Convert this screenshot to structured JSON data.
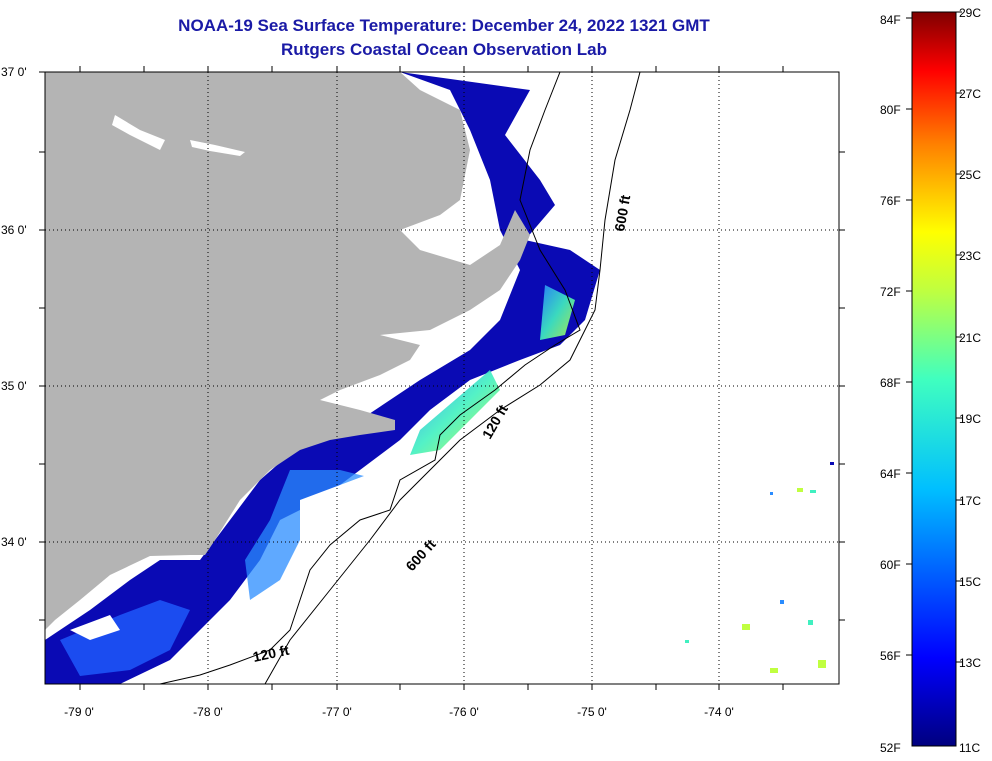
{
  "header": {
    "title": "NOAA-19 Sea Surface Temperature:  December 24, 2022 1321 GMT",
    "subtitle": "Rutgers Coastal Ocean Observation Lab"
  },
  "map": {
    "lon_ticks": [
      "-79 0'",
      "-78 0'",
      "-77 0'",
      "-76 0'",
      "-75 0'",
      "-74 0'"
    ],
    "lat_ticks": [
      "37 0'",
      "36 0'",
      "35 0'",
      "34 0'"
    ],
    "contours": [
      {
        "label": "600 ft"
      },
      {
        "label": "120 ft"
      },
      {
        "label": "600 ft"
      },
      {
        "label": "120 ft"
      }
    ],
    "colors": {
      "land": "#b4b4b4",
      "water_no_data": "#ffffff",
      "cold": "#0a0ab4"
    }
  },
  "colorbar": {
    "fahrenheit": [
      "84F",
      "80F",
      "76F",
      "72F",
      "68F",
      "64F",
      "60F",
      "56F",
      "52F"
    ],
    "celsius": [
      "29C",
      "27C",
      "25C",
      "23C",
      "21C",
      "19C",
      "17C",
      "15C",
      "13C",
      "11C"
    ]
  }
}
